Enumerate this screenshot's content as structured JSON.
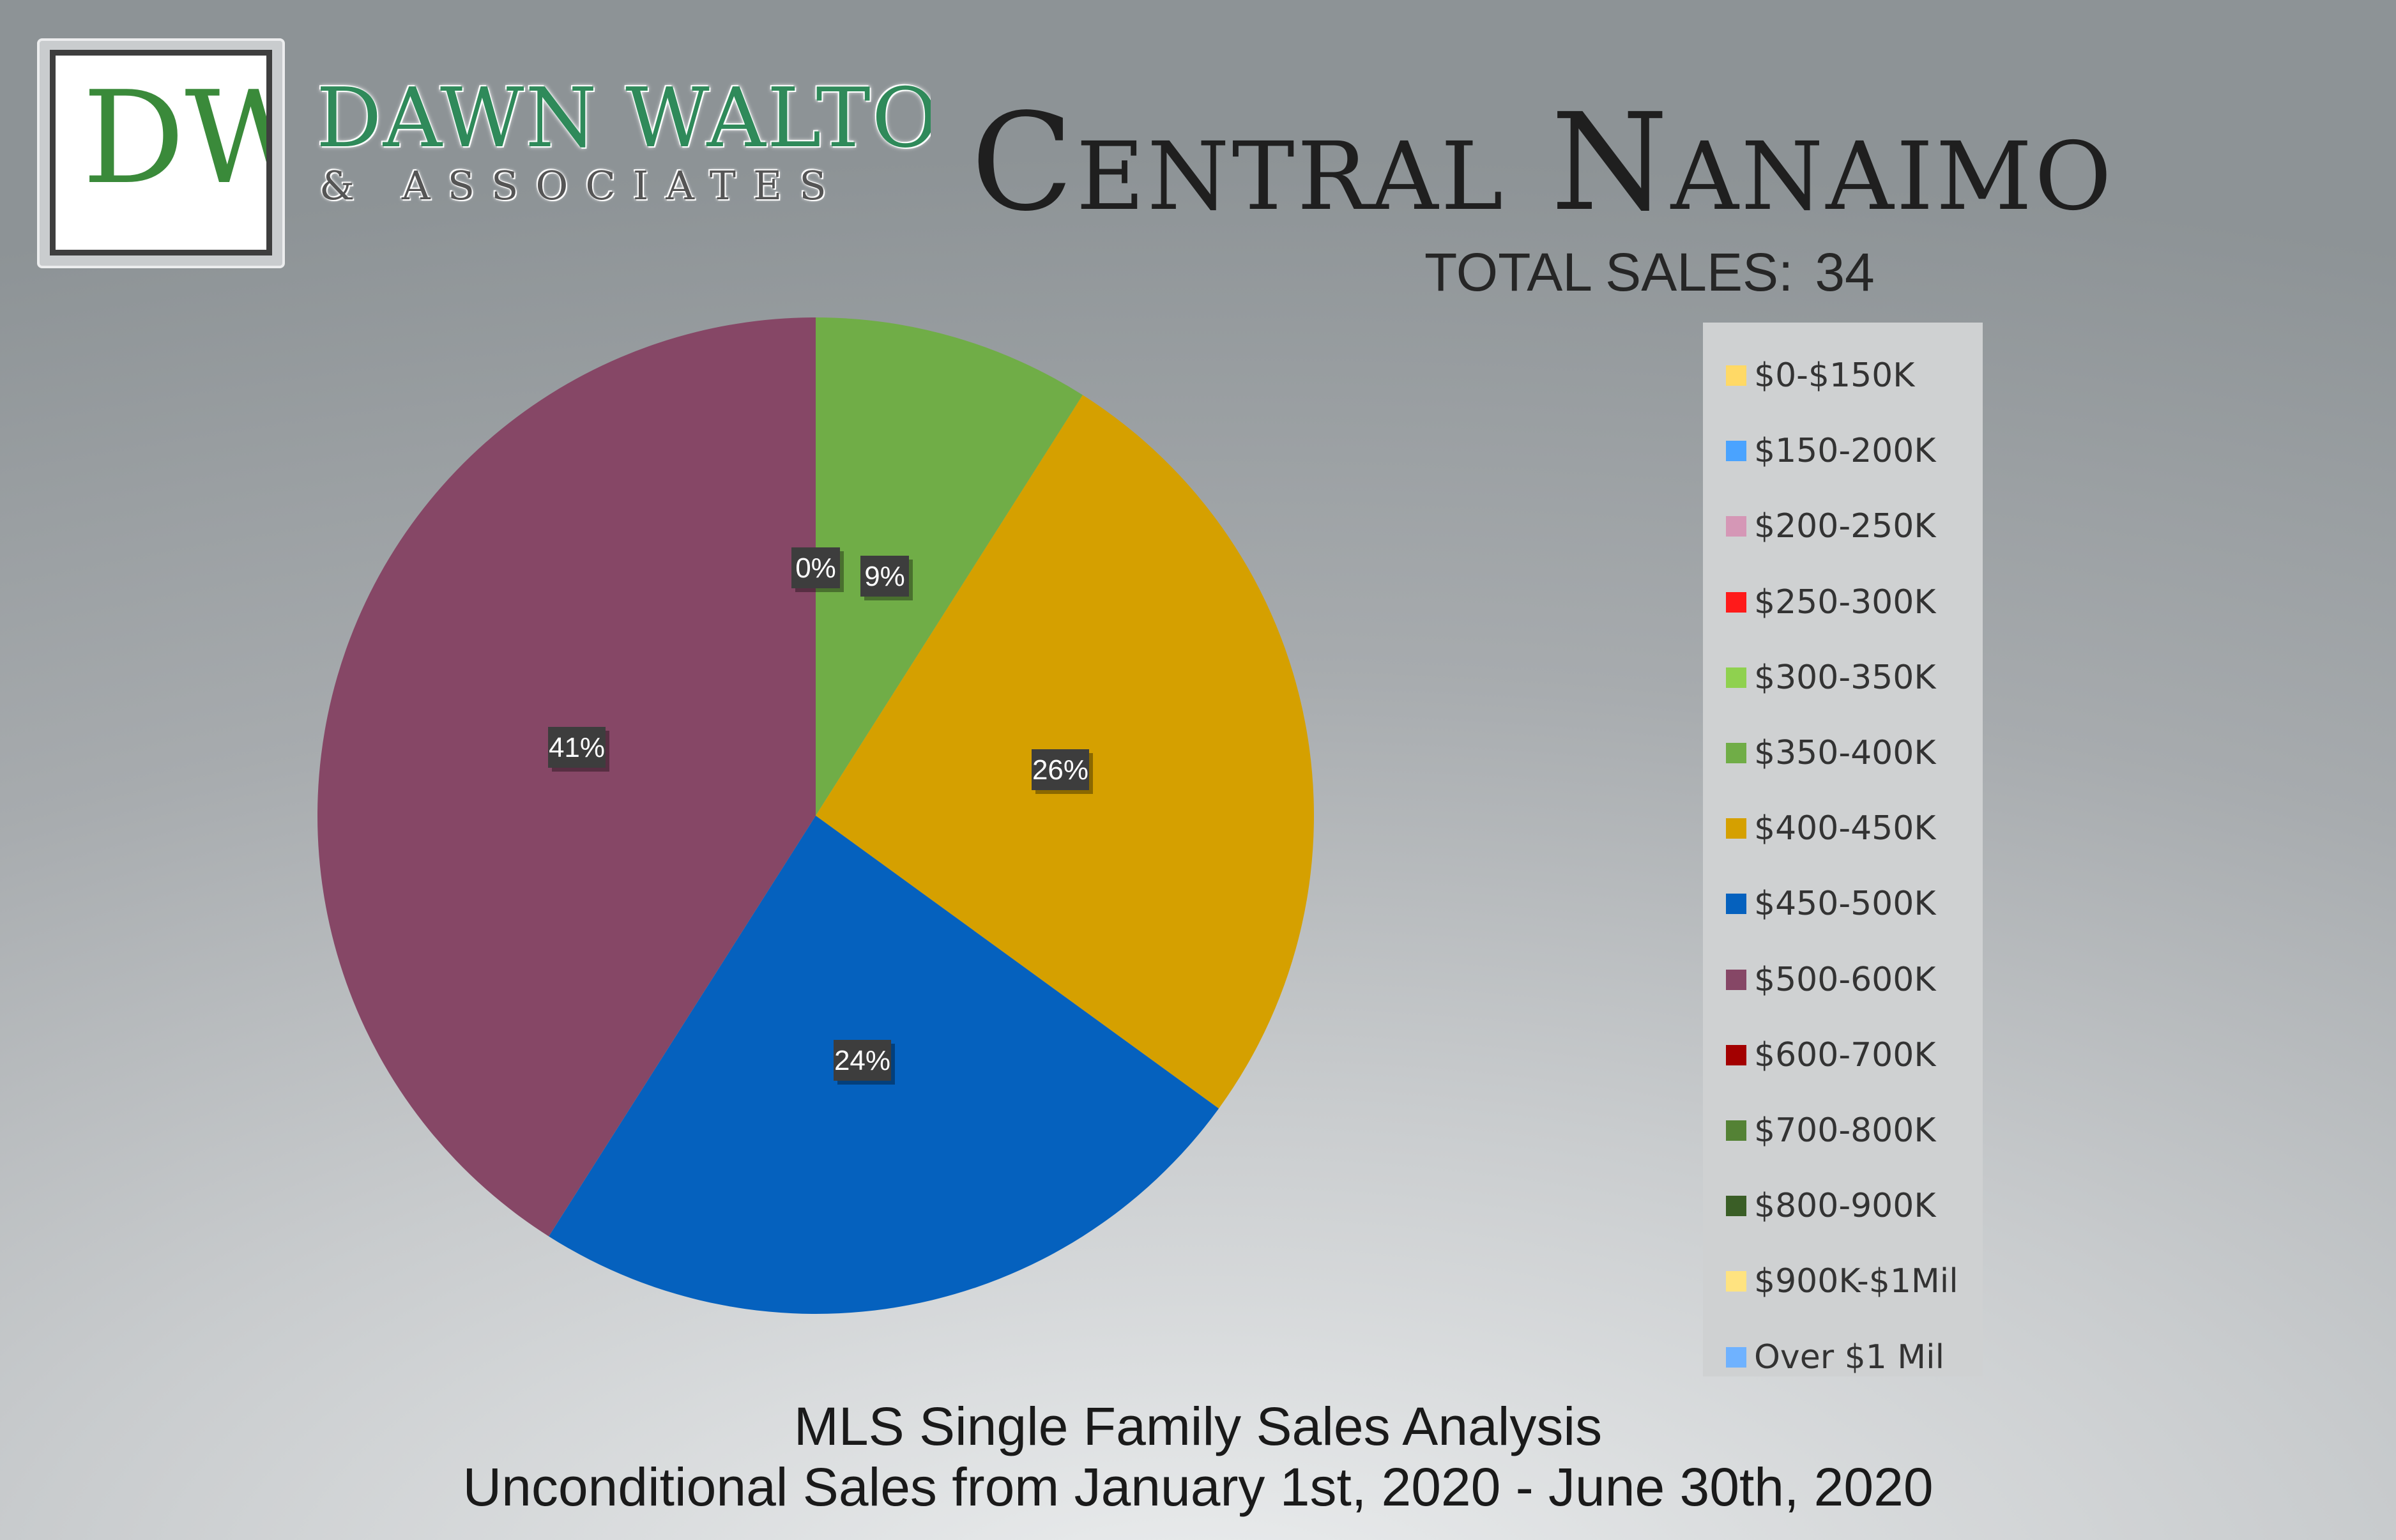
{
  "brand": {
    "monogram": "DW",
    "name": "DAWN WALTON",
    "sub": "& ASSOCIATES"
  },
  "header": {
    "title": "Central Nanaimo",
    "total_sales_label": "TOTAL SALES:",
    "total_sales_value": "34"
  },
  "chart_data": {
    "type": "pie",
    "title": "",
    "legend_position": "right",
    "slices": [
      {
        "label": "$0-$150K",
        "value": 0,
        "display": "",
        "color": "#ffd966"
      },
      {
        "label": "$150-200K",
        "value": 0,
        "display": "",
        "color": "#4aa3ff"
      },
      {
        "label": "$200-250K",
        "value": 0,
        "display": "",
        "color": "#d597b6"
      },
      {
        "label": "$250-300K",
        "value": 0,
        "display": "",
        "color": "#ff1a1a"
      },
      {
        "label": "$300-350K",
        "value": 0,
        "display": "0%",
        "color": "#8fd14f"
      },
      {
        "label": "$350-400K",
        "value": 9,
        "display": "9%",
        "color": "#70ad47"
      },
      {
        "label": "$400-450K",
        "value": 26,
        "display": "26%",
        "color": "#d5a000"
      },
      {
        "label": "$450-500K",
        "value": 24,
        "display": "24%",
        "color": "#0561be"
      },
      {
        "label": "$500-600K",
        "value": 41,
        "display": "41%",
        "color": "#864766"
      },
      {
        "label": "$600-700K",
        "value": 0,
        "display": "",
        "color": "#a30000"
      },
      {
        "label": "$700-800K",
        "value": 0,
        "display": "",
        "color": "#548235"
      },
      {
        "label": "$800-900K",
        "value": 0,
        "display": "",
        "color": "#3a5e26"
      },
      {
        "label": "$900K-$1Mil",
        "value": 0,
        "display": "",
        "color": "#ffe380"
      },
      {
        "label": "Over $1 Mil",
        "value": 0,
        "display": "",
        "color": "#6fb2ff"
      }
    ]
  },
  "footer": {
    "line1": "MLS Single Family Sales Analysis",
    "line2": "Unconditional Sales from January 1st, 2020 - June 30th, 2020"
  }
}
